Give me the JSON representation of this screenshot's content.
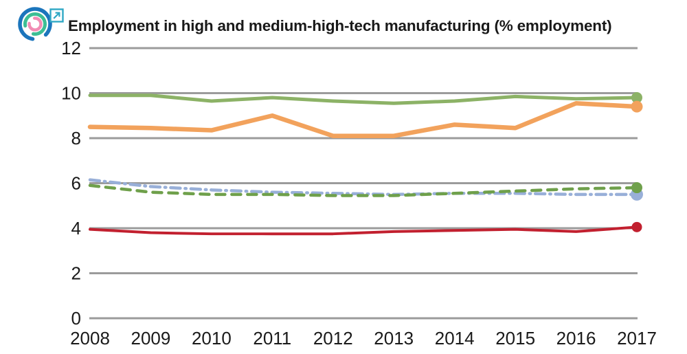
{
  "header": {
    "title": "Employment in high and medium-high-tech manufacturing (% employment)",
    "logo": {
      "outer_color": "#1B75BC",
      "middle_color": "#3DBE94",
      "inner_color": "#F28CB4",
      "link_color": "#2FA8C5"
    }
  },
  "chart_data": {
    "type": "line",
    "title": "Employment in high and medium-high-tech manufacturing (% employment)",
    "x": [
      2008,
      2009,
      2010,
      2011,
      2012,
      2013,
      2014,
      2015,
      2016,
      2017
    ],
    "xlabel": "",
    "ylabel": "",
    "ylim": [
      0,
      12
    ],
    "yticks": [
      0,
      2,
      4,
      6,
      8,
      10,
      12
    ],
    "grid": "horizontal-only",
    "gridline_color": "#9B9B9B",
    "tick_label_color": "#1A1A1A",
    "legend": "none",
    "end_markers": true,
    "series": [
      {
        "name": "green-solid",
        "color": "#8CB266",
        "style": "solid",
        "width": 5,
        "marker_radius": 8,
        "values": [
          9.9,
          9.9,
          9.65,
          9.8,
          9.65,
          9.55,
          9.65,
          9.85,
          9.75,
          9.8
        ]
      },
      {
        "name": "orange-solid",
        "color": "#F2A25C",
        "style": "solid",
        "width": 6.5,
        "marker_radius": 8.5,
        "values": [
          8.5,
          8.45,
          8.35,
          9.0,
          8.1,
          8.1,
          8.6,
          8.45,
          9.55,
          9.4
        ]
      },
      {
        "name": "blue-dash-dot",
        "color": "#98AFD8",
        "style": "dashdot",
        "width": 4.5,
        "marker_radius": 9,
        "values": [
          6.15,
          5.85,
          5.7,
          5.6,
          5.55,
          5.5,
          5.55,
          5.55,
          5.5,
          5.5
        ]
      },
      {
        "name": "green-dashed",
        "color": "#6FA04B",
        "style": "dashed",
        "width": 4.5,
        "marker_radius": 8,
        "values": [
          5.9,
          5.6,
          5.5,
          5.5,
          5.45,
          5.45,
          5.55,
          5.65,
          5.75,
          5.8
        ]
      },
      {
        "name": "red-solid",
        "color": "#C2202F",
        "style": "solid",
        "width": 4,
        "marker_radius": 7.5,
        "values": [
          3.95,
          3.8,
          3.75,
          3.75,
          3.75,
          3.85,
          3.9,
          3.95,
          3.85,
          4.05
        ]
      }
    ]
  }
}
